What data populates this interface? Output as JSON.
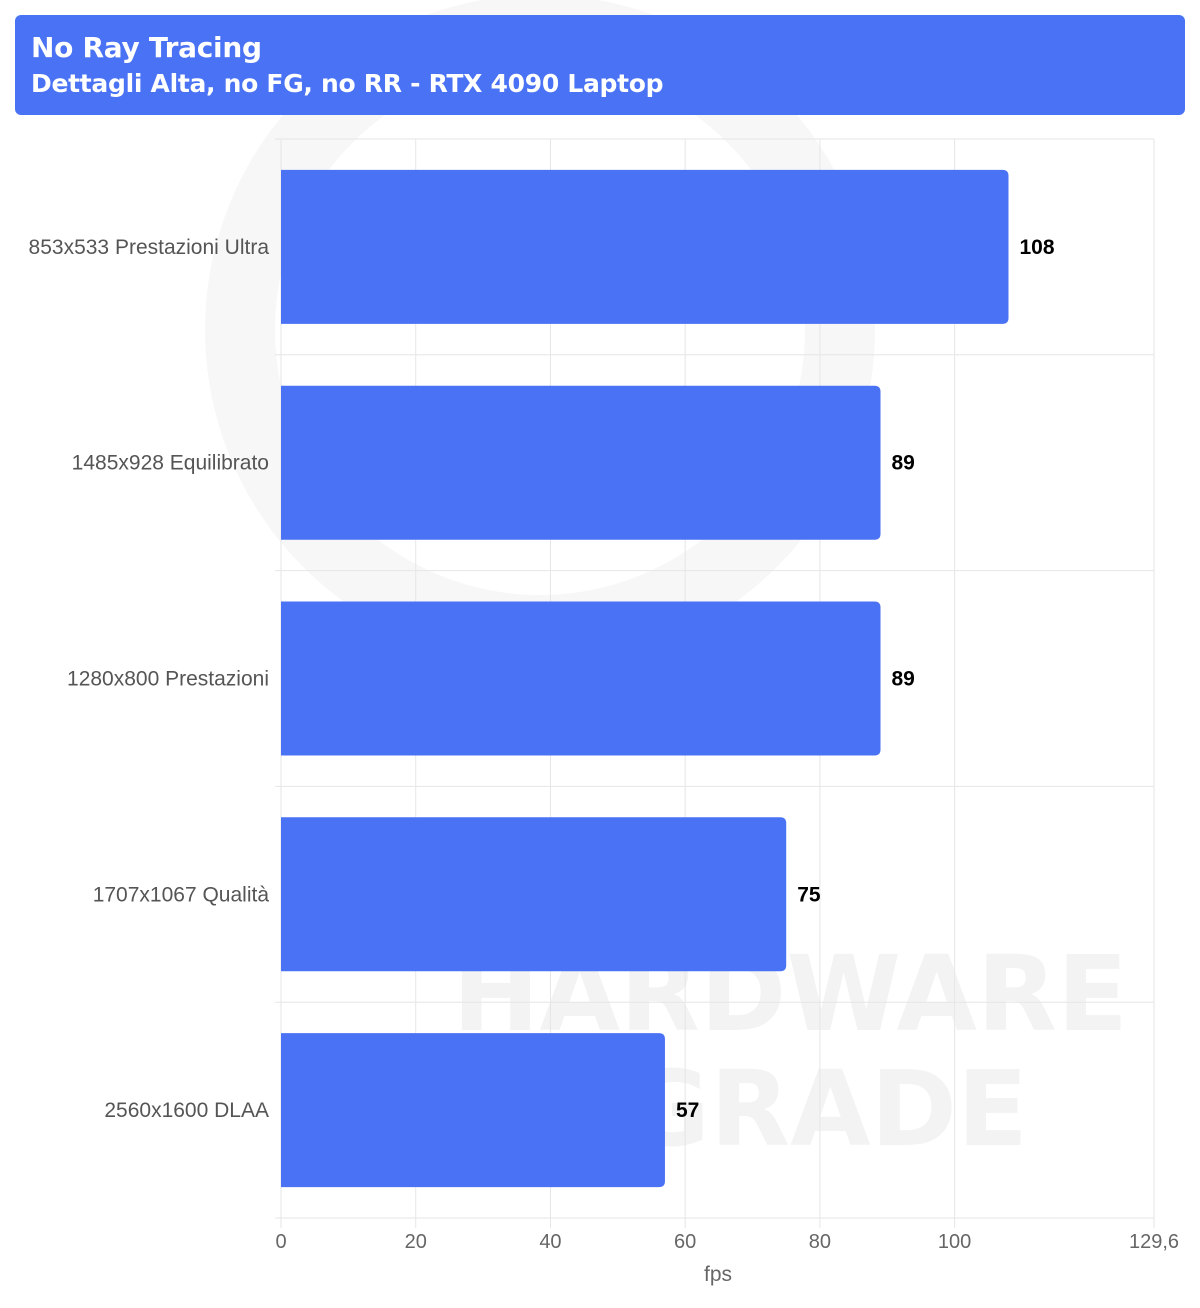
{
  "header": {
    "title": "No Ray Tracing",
    "subtitle": "Dettagli Alta, no FG, no RR - RTX 4090 Laptop"
  },
  "watermark": [
    "HARDWARE",
    "UPGRADE"
  ],
  "colors": {
    "bar": "#4a72f4",
    "header": "#4a72f4",
    "grid": "#e6e6e6"
  },
  "chart_data": {
    "type": "bar",
    "orientation": "horizontal",
    "categories": [
      "853x533 Prestazioni Ultra",
      "1485x928 Equilibrato",
      "1280x800 Prestazioni",
      "1707x1067 Qualità",
      "2560x1600 DLAA"
    ],
    "values": [
      108,
      89,
      89,
      75,
      57
    ],
    "xlabel": "fps",
    "ylabel": "",
    "xlim": [
      0,
      129.6
    ],
    "xticks": [
      0,
      20,
      40,
      60,
      80,
      100,
      129.6
    ],
    "xtick_labels": [
      "0",
      "20",
      "40",
      "60",
      "80",
      "100",
      "129,6"
    ],
    "grid": true,
    "data_labels": true
  }
}
